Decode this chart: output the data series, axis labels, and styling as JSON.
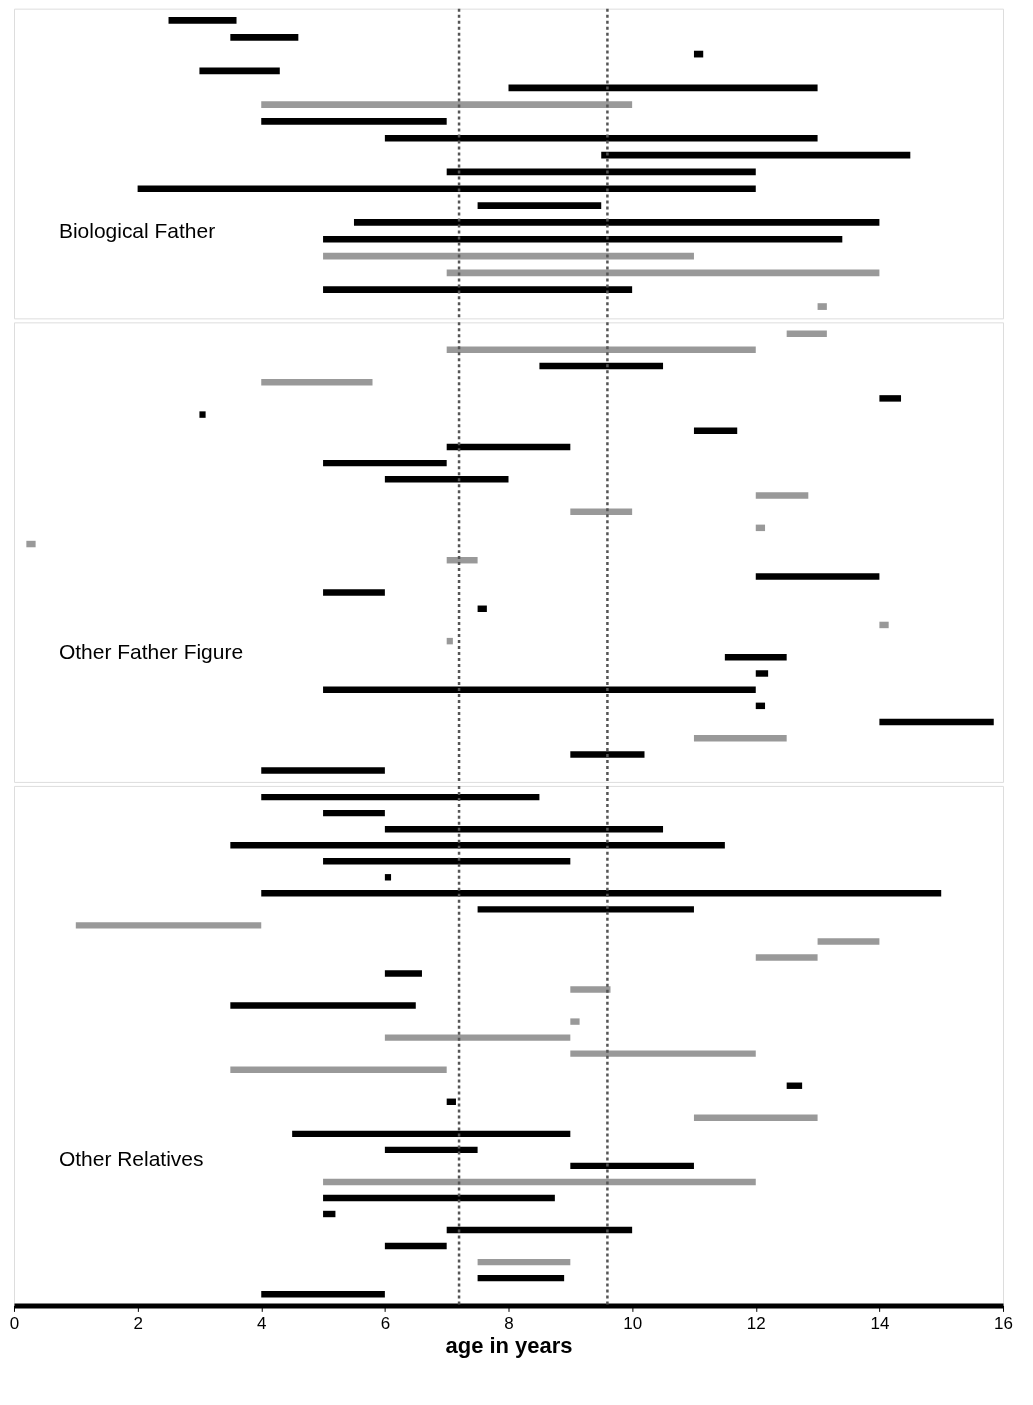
{
  "chart_data": [
    {
      "type": "bar",
      "orientation": "horizontal",
      "tick_labels": false,
      "annotations": [
        "Biological Father"
      ],
      "categories": [
        null,
        null,
        null,
        null,
        null,
        null,
        null,
        null,
        null,
        null,
        null,
        null,
        null,
        null,
        null,
        null,
        null,
        null
      ],
      "base": [
        2.5,
        3.5,
        11.0,
        3.0,
        8.0,
        4.0,
        4.0,
        6.0,
        9.5,
        7.0,
        2.0,
        7.5,
        5.5,
        5.0,
        5.0,
        7.0,
        5.0,
        13.0
      ],
      "values": [
        1.1,
        1.1,
        0.15,
        1.3,
        5.0,
        6.0,
        3.0,
        7.0,
        5.0,
        5.0,
        10.0,
        2.0,
        8.5,
        8.4,
        6.0,
        7.0,
        5.0,
        0.15
      ],
      "colors": [
        "#000000",
        "#000000",
        "#000000",
        "#000000",
        "#000000",
        "#999999",
        "#000000",
        "#000000",
        "#000000",
        "#000000",
        "#000000",
        "#000000",
        "#000000",
        "#000000",
        "#999999",
        "#999999",
        "#000000",
        "#999999"
      ],
      "xlim": [
        0,
        16
      ],
      "xticks": [
        0,
        2,
        4,
        6,
        8,
        10,
        12,
        14,
        16
      ],
      "ref_lines": [
        {
          "axis": "x",
          "value": 7.2,
          "line_style": "dotted"
        },
        {
          "axis": "x",
          "value": 9.6,
          "line_style": "dotted"
        }
      ]
    },
    {
      "type": "bar",
      "orientation": "horizontal",
      "tick_labels": false,
      "annotations": [
        "Other Father Figure"
      ],
      "categories": [
        null,
        null,
        null,
        null,
        null,
        null,
        null,
        null,
        null,
        null,
        null,
        null,
        null,
        null,
        null,
        null,
        null,
        null,
        null,
        null,
        null,
        null,
        null,
        null,
        null,
        null,
        null,
        null
      ],
      "base": [
        12.5,
        7.0,
        8.5,
        4.0,
        14.0,
        3.0,
        11.0,
        7.0,
        5.0,
        6.0,
        12.0,
        9.0,
        12.0,
        0.2,
        7.0,
        12.0,
        5.0,
        7.5,
        14.0,
        7.0,
        11.5,
        12.0,
        5.0,
        12.0,
        14.0,
        11.0,
        9.0,
        4.0
      ],
      "values": [
        0.65,
        5.0,
        2.0,
        1.8,
        0.35,
        0.1,
        0.7,
        2.0,
        2.0,
        2.0,
        0.85,
        1.0,
        0.15,
        0.15,
        0.5,
        2.0,
        1.0,
        0.15,
        0.15,
        0.1,
        1.0,
        0.2,
        7.0,
        0.15,
        1.85,
        1.5,
        1.2,
        2.0
      ],
      "colors": [
        "#999999",
        "#999999",
        "#000000",
        "#999999",
        "#000000",
        "#000000",
        "#000000",
        "#000000",
        "#000000",
        "#000000",
        "#999999",
        "#999999",
        "#999999",
        "#999999",
        "#999999",
        "#000000",
        "#000000",
        "#000000",
        "#999999",
        "#999999",
        "#000000",
        "#000000",
        "#000000",
        "#000000",
        "#000000",
        "#999999",
        "#000000",
        "#000000"
      ],
      "xlim": [
        0,
        16
      ],
      "xticks": [
        0,
        2,
        4,
        6,
        8,
        10,
        12,
        14,
        16
      ],
      "ref_lines": [
        {
          "axis": "x",
          "value": 7.2,
          "line_style": "dotted"
        },
        {
          "axis": "x",
          "value": 9.6,
          "line_style": "dotted"
        }
      ]
    },
    {
      "type": "bar",
      "orientation": "horizontal",
      "tick_labels": "x",
      "annotations": [
        "Other Relatives"
      ],
      "xlabel": "age in years",
      "categories": [
        null,
        null,
        null,
        null,
        null,
        null,
        null,
        null,
        null,
        null,
        null,
        null,
        null,
        null,
        null,
        null,
        null,
        null,
        null,
        null,
        null,
        null,
        null,
        null,
        null,
        null,
        null,
        null,
        null,
        null,
        null,
        null
      ],
      "base": [
        4.0,
        5.0,
        6.0,
        3.5,
        5.0,
        6.0,
        4.0,
        7.5,
        1.0,
        13.0,
        12.0,
        6.0,
        9.0,
        3.5,
        9.0,
        6.0,
        9.0,
        3.5,
        12.5,
        7.0,
        11.0,
        4.5,
        6.0,
        9.0,
        5.0,
        5.0,
        5.0,
        7.0,
        6.0,
        7.5,
        7.5,
        4.0
      ],
      "values": [
        4.5,
        1.0,
        4.5,
        8.0,
        4.0,
        0.1,
        11.0,
        3.5,
        3.0,
        1.0,
        1.0,
        0.6,
        0.65,
        3.0,
        0.15,
        3.0,
        3.0,
        3.5,
        0.25,
        0.15,
        2.0,
        4.5,
        1.5,
        2.0,
        7.0,
        3.75,
        0.2,
        3.0,
        1.0,
        1.5,
        1.4,
        2.0
      ],
      "colors": [
        "#000000",
        "#000000",
        "#000000",
        "#000000",
        "#000000",
        "#000000",
        "#000000",
        "#000000",
        "#999999",
        "#999999",
        "#999999",
        "#000000",
        "#999999",
        "#000000",
        "#999999",
        "#999999",
        "#999999",
        "#999999",
        "#000000",
        "#000000",
        "#999999",
        "#000000",
        "#000000",
        "#000000",
        "#999999",
        "#000000",
        "#000000",
        "#000000",
        "#000000",
        "#999999",
        "#000000",
        "#000000"
      ],
      "xlim": [
        0,
        16
      ],
      "xticks": [
        0,
        2,
        4,
        6,
        8,
        10,
        12,
        14,
        16
      ],
      "ref_lines": [
        {
          "axis": "x",
          "value": 7.2,
          "line_style": "dotted"
        },
        {
          "axis": "x",
          "value": 9.6,
          "line_style": "dotted"
        }
      ]
    }
  ]
}
